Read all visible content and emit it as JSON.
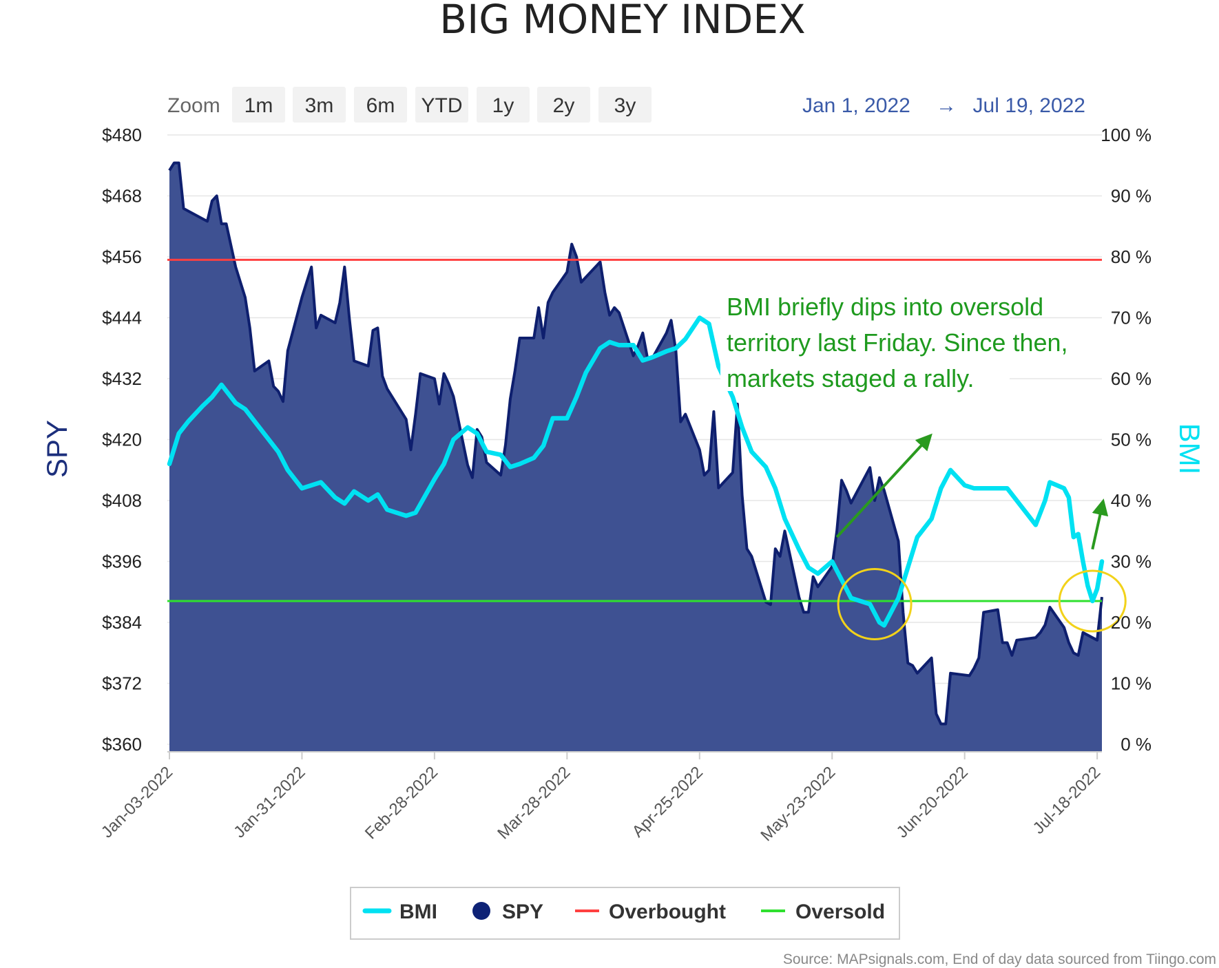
{
  "chart_data": {
    "type": "area",
    "title": "BIG MONEY INDEX",
    "zoom": {
      "label": "Zoom",
      "buttons": [
        "1m",
        "3m",
        "6m",
        "YTD",
        "1y",
        "2y",
        "3y"
      ]
    },
    "range": {
      "from": "Jan 1, 2022",
      "arrow": "→",
      "to": "Jul 19, 2022"
    },
    "y_left": {
      "title": "SPY",
      "range": [
        360,
        480
      ],
      "ticks": [
        "$480",
        "$468",
        "$456",
        "$444",
        "$432",
        "$420",
        "$408",
        "$396",
        "$384",
        "$372",
        "$360"
      ]
    },
    "y_right": {
      "title": "BMI",
      "range": [
        0,
        100
      ],
      "ticks": [
        "100 %",
        "90 %",
        "80 %",
        "70 %",
        "60 %",
        "50 %",
        "40 %",
        "30 %",
        "20 %",
        "10 %",
        "0 %"
      ]
    },
    "x_ticks": [
      "Jan-03-2022",
      "Jan-31-2022",
      "Feb-28-2022",
      "Mar-28-2022",
      "Apr-25-2022",
      "May-23-2022",
      "Jun-20-2022",
      "Jul-18-2022"
    ],
    "x_range": [
      "2022-01-03",
      "2022-07-19"
    ],
    "grid": true,
    "legend": "bottom-center",
    "series": [
      {
        "name": "SPY",
        "type": "area",
        "color": "#1c2f7c",
        "fill": "#3e5192",
        "points": [
          [
            "2022-01-03",
            473
          ],
          [
            "2022-01-04",
            474.5
          ],
          [
            "2022-01-05",
            474.5
          ],
          [
            "2022-01-06",
            465.5
          ],
          [
            "2022-01-07",
            465
          ],
          [
            "2022-01-10",
            463.5
          ],
          [
            "2022-01-11",
            463
          ],
          [
            "2022-01-12",
            467
          ],
          [
            "2022-01-13",
            468
          ],
          [
            "2022-01-14",
            462.5
          ],
          [
            "2022-01-15",
            462.5
          ],
          [
            "2022-01-17",
            454
          ],
          [
            "2022-01-19",
            448
          ],
          [
            "2022-01-20",
            442
          ],
          [
            "2022-01-21",
            433.5
          ],
          [
            "2022-01-24",
            435.5
          ],
          [
            "2022-01-25",
            430.5
          ],
          [
            "2022-01-26",
            429.5
          ],
          [
            "2022-01-27",
            427.5
          ],
          [
            "2022-01-28",
            437.5
          ],
          [
            "2022-01-31",
            448
          ],
          [
            "2022-02-01",
            451
          ],
          [
            "2022-02-02",
            454
          ],
          [
            "2022-02-03",
            442
          ],
          [
            "2022-02-04",
            444.5
          ],
          [
            "2022-02-07",
            443
          ],
          [
            "2022-02-08",
            447
          ],
          [
            "2022-02-09",
            454
          ],
          [
            "2022-02-10",
            444
          ],
          [
            "2022-02-11",
            435.5
          ],
          [
            "2022-02-14",
            434.5
          ],
          [
            "2022-02-15",
            441.5
          ],
          [
            "2022-02-16",
            442
          ],
          [
            "2022-02-17",
            432.5
          ],
          [
            "2022-02-18",
            430
          ],
          [
            "2022-02-22",
            424
          ],
          [
            "2022-02-23",
            418
          ],
          [
            "2022-02-24",
            425
          ],
          [
            "2022-02-25",
            433
          ],
          [
            "2022-02-28",
            432
          ],
          [
            "2022-03-01",
            427
          ],
          [
            "2022-03-02",
            433
          ],
          [
            "2022-03-03",
            431
          ],
          [
            "2022-03-04",
            428.5
          ],
          [
            "2022-03-07",
            415
          ],
          [
            "2022-03-08",
            412.5
          ],
          [
            "2022-03-09",
            422
          ],
          [
            "2022-03-10",
            420.5
          ],
          [
            "2022-03-11",
            415.5
          ],
          [
            "2022-03-14",
            413
          ],
          [
            "2022-03-15",
            419
          ],
          [
            "2022-03-16",
            428
          ],
          [
            "2022-03-17",
            433.5
          ],
          [
            "2022-03-18",
            440
          ],
          [
            "2022-03-21",
            440
          ],
          [
            "2022-03-22",
            446
          ],
          [
            "2022-03-23",
            440
          ],
          [
            "2022-03-24",
            447
          ],
          [
            "2022-03-25",
            449
          ],
          [
            "2022-03-28",
            453
          ],
          [
            "2022-03-29",
            458.5
          ],
          [
            "2022-03-30",
            456
          ],
          [
            "2022-03-31",
            451
          ],
          [
            "2022-04-01",
            452
          ],
          [
            "2022-04-04",
            455
          ],
          [
            "2022-04-05",
            449
          ],
          [
            "2022-04-06",
            444.5
          ],
          [
            "2022-04-07",
            446
          ],
          [
            "2022-04-08",
            445
          ],
          [
            "2022-04-11",
            436.5
          ],
          [
            "2022-04-12",
            438.5
          ],
          [
            "2022-04-13",
            441
          ],
          [
            "2022-04-14",
            436
          ],
          [
            "2022-04-15",
            436
          ],
          [
            "2022-04-18",
            441
          ],
          [
            "2022-04-19",
            443.5
          ],
          [
            "2022-04-20",
            437.5
          ],
          [
            "2022-04-21",
            423.5
          ],
          [
            "2022-04-22",
            425
          ],
          [
            "2022-04-25",
            418
          ],
          [
            "2022-04-26",
            413
          ],
          [
            "2022-04-27",
            414
          ],
          [
            "2022-04-28",
            425.5
          ],
          [
            "2022-04-29",
            410.5
          ],
          [
            "2022-05-02",
            413.5
          ],
          [
            "2022-05-03",
            427
          ],
          [
            "2022-05-04",
            409
          ],
          [
            "2022-05-05",
            398.5
          ],
          [
            "2022-05-06",
            397
          ],
          [
            "2022-05-09",
            388
          ],
          [
            "2022-05-10",
            387.5
          ],
          [
            "2022-05-11",
            398.5
          ],
          [
            "2022-05-12",
            397
          ],
          [
            "2022-05-13",
            402
          ],
          [
            "2022-05-16",
            389
          ],
          [
            "2022-05-17",
            386
          ],
          [
            "2022-05-18",
            386
          ],
          [
            "2022-05-19",
            393
          ],
          [
            "2022-05-20",
            391
          ],
          [
            "2022-05-23",
            395
          ],
          [
            "2022-05-24",
            402
          ],
          [
            "2022-05-25",
            412
          ],
          [
            "2022-05-26",
            410
          ],
          [
            "2022-05-27",
            407.5
          ],
          [
            "2022-05-31",
            414.5
          ],
          [
            "2022-06-01",
            408
          ],
          [
            "2022-06-02",
            412.5
          ],
          [
            "2022-06-03",
            410
          ],
          [
            "2022-06-06",
            400
          ],
          [
            "2022-06-07",
            386
          ],
          [
            "2022-06-08",
            376
          ],
          [
            "2022-06-09",
            375.5
          ],
          [
            "2022-06-10",
            374
          ],
          [
            "2022-06-13",
            377
          ],
          [
            "2022-06-14",
            366
          ],
          [
            "2022-06-15",
            364
          ],
          [
            "2022-06-16",
            364
          ],
          [
            "2022-06-17",
            374
          ],
          [
            "2022-06-21",
            373.5
          ],
          [
            "2022-06-22",
            375
          ],
          [
            "2022-06-23",
            377
          ],
          [
            "2022-06-24",
            386
          ],
          [
            "2022-06-27",
            386.5
          ],
          [
            "2022-06-28",
            380
          ],
          [
            "2022-06-29",
            380
          ],
          [
            "2022-06-30",
            377.5
          ],
          [
            "2022-07-01",
            380.5
          ],
          [
            "2022-07-05",
            381
          ],
          [
            "2022-07-06",
            382
          ],
          [
            "2022-07-07",
            383.5
          ],
          [
            "2022-07-08",
            387
          ],
          [
            "2022-07-11",
            383
          ],
          [
            "2022-07-12",
            380
          ],
          [
            "2022-07-13",
            378
          ],
          [
            "2022-07-14",
            377.5
          ],
          [
            "2022-07-15",
            382
          ],
          [
            "2022-07-18",
            380.5
          ],
          [
            "2022-07-19",
            389
          ]
        ]
      },
      {
        "name": "BMI",
        "type": "line",
        "color": "#00e1f2",
        "points": [
          [
            "2022-01-03",
            46
          ],
          [
            "2022-01-05",
            51
          ],
          [
            "2022-01-07",
            53
          ],
          [
            "2022-01-10",
            55.5
          ],
          [
            "2022-01-12",
            57
          ],
          [
            "2022-01-14",
            59
          ],
          [
            "2022-01-17",
            56
          ],
          [
            "2022-01-19",
            55
          ],
          [
            "2022-01-21",
            53
          ],
          [
            "2022-01-24",
            50
          ],
          [
            "2022-01-26",
            48
          ],
          [
            "2022-01-28",
            45
          ],
          [
            "2022-01-31",
            42
          ],
          [
            "2022-02-02",
            42.5
          ],
          [
            "2022-02-04",
            43
          ],
          [
            "2022-02-07",
            40.5
          ],
          [
            "2022-02-09",
            39.5
          ],
          [
            "2022-02-11",
            41.5
          ],
          [
            "2022-02-14",
            40
          ],
          [
            "2022-02-16",
            41
          ],
          [
            "2022-02-18",
            38.5
          ],
          [
            "2022-02-22",
            37.5
          ],
          [
            "2022-02-24",
            38
          ],
          [
            "2022-02-28",
            43.5
          ],
          [
            "2022-03-02",
            46
          ],
          [
            "2022-03-04",
            50
          ],
          [
            "2022-03-07",
            52
          ],
          [
            "2022-03-09",
            51
          ],
          [
            "2022-03-11",
            48
          ],
          [
            "2022-03-14",
            47.5
          ],
          [
            "2022-03-16",
            45.5
          ],
          [
            "2022-03-18",
            46
          ],
          [
            "2022-03-21",
            47
          ],
          [
            "2022-03-23",
            49
          ],
          [
            "2022-03-25",
            53.5
          ],
          [
            "2022-03-28",
            53.5
          ],
          [
            "2022-03-30",
            57
          ],
          [
            "2022-04-01",
            61
          ],
          [
            "2022-04-04",
            65
          ],
          [
            "2022-04-06",
            66
          ],
          [
            "2022-04-08",
            65.5
          ],
          [
            "2022-04-11",
            65.5
          ],
          [
            "2022-04-13",
            63
          ],
          [
            "2022-04-15",
            63.5
          ],
          [
            "2022-04-18",
            64.5
          ],
          [
            "2022-04-20",
            65
          ],
          [
            "2022-04-22",
            66.5
          ],
          [
            "2022-04-25",
            70
          ],
          [
            "2022-04-27",
            69
          ],
          [
            "2022-04-29",
            62
          ],
          [
            "2022-05-02",
            57
          ],
          [
            "2022-05-04",
            52
          ],
          [
            "2022-05-06",
            48
          ],
          [
            "2022-05-09",
            45.5
          ],
          [
            "2022-05-11",
            42
          ],
          [
            "2022-05-13",
            37
          ],
          [
            "2022-05-16",
            32
          ],
          [
            "2022-05-18",
            29
          ],
          [
            "2022-05-20",
            28
          ],
          [
            "2022-05-23",
            30
          ],
          [
            "2022-05-25",
            27
          ],
          [
            "2022-05-27",
            24
          ],
          [
            "2022-05-31",
            23
          ],
          [
            "2022-06-02",
            20
          ],
          [
            "2022-06-03",
            19.5
          ],
          [
            "2022-06-06",
            24
          ],
          [
            "2022-06-08",
            29
          ],
          [
            "2022-06-10",
            34
          ],
          [
            "2022-06-13",
            37
          ],
          [
            "2022-06-15",
            42
          ],
          [
            "2022-06-17",
            45
          ],
          [
            "2022-06-20",
            42.5
          ],
          [
            "2022-06-22",
            42
          ],
          [
            "2022-06-24",
            42
          ],
          [
            "2022-06-27",
            42
          ],
          [
            "2022-06-29",
            42
          ],
          [
            "2022-07-01",
            40
          ],
          [
            "2022-07-05",
            36
          ],
          [
            "2022-07-07",
            40
          ],
          [
            "2022-07-08",
            43
          ],
          [
            "2022-07-11",
            42
          ],
          [
            "2022-07-12",
            40.5
          ],
          [
            "2022-07-13",
            34
          ],
          [
            "2022-07-14",
            34.5
          ],
          [
            "2022-07-15",
            30
          ],
          [
            "2022-07-16",
            26
          ],
          [
            "2022-07-17",
            23.5
          ],
          [
            "2022-07-18",
            25.5
          ],
          [
            "2022-07-19",
            30
          ]
        ]
      },
      {
        "name": "Overbought",
        "type": "hline",
        "color": "#ff4040",
        "value": 79.5,
        "axis": "right"
      },
      {
        "name": "Oversold",
        "type": "hline",
        "color": "#2fe02f",
        "value": 23.5,
        "axis": "right"
      }
    ],
    "legend_items": [
      {
        "name": "BMI",
        "color": "#00e1f2",
        "symbol": "line"
      },
      {
        "name": "SPY",
        "color": "#1c2f7c",
        "symbol": "circle"
      },
      {
        "name": "Overbought",
        "color": "#ff4040",
        "symbol": "line"
      },
      {
        "name": "Oversold",
        "color": "#2fe02f",
        "symbol": "line"
      }
    ],
    "annotation": {
      "lines": [
        "BMI briefly dips into oversold",
        "territory last Friday. Since then,",
        "markets staged a rally."
      ],
      "color": "#1e9a1e"
    },
    "highlights": [
      {
        "date": "2022-06-01",
        "bmi": 23,
        "color": "#f2d21a",
        "arrow_to": [
          "2022-06-12",
          50
        ],
        "arrow_from": [
          "2022-05-24",
          34
        ]
      },
      {
        "date": "2022-07-17",
        "bmi": 23.5,
        "color": "#f2d21a",
        "arrow_to": [
          "2022-07-19",
          39
        ],
        "arrow_from": [
          "2022-07-17",
          32
        ]
      }
    ],
    "source": "Source: MAPsignals.com, End of day data sourced from Tiingo.com"
  }
}
